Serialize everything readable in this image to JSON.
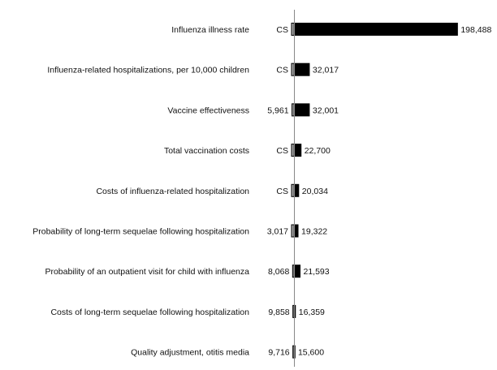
{
  "chart_data": {
    "type": "tornado",
    "title": "",
    "xlabel": "",
    "ylabel": "",
    "base_value": 15000,
    "x_range": [
      12000,
      200000
    ],
    "colors": {
      "low": "#a6a6a6",
      "high": "#000000",
      "axis": "#888888"
    },
    "parameters": [
      {
        "label": "Influenza illness rate",
        "low_text": "CS",
        "low_value": 12000,
        "high_value": 198488,
        "high_text": "198,488"
      },
      {
        "label": "Influenza-related hospitalizations, per 10,000 children",
        "low_text": "CS",
        "low_value": 12000,
        "high_value": 32017,
        "high_text": "32,017"
      },
      {
        "label": "Vaccine effectiveness",
        "low_text": "5,961",
        "low_value": 12500,
        "high_value": 32001,
        "high_text": "32,001"
      },
      {
        "label": "Total vaccination costs",
        "low_text": "CS",
        "low_value": 12000,
        "high_value": 22700,
        "high_text": "22,700"
      },
      {
        "label": "Costs of influenza-related hospitalization",
        "low_text": "CS",
        "low_value": 12000,
        "high_value": 20034,
        "high_text": "20,034"
      },
      {
        "label": "Probability of long-term sequelae following hospitalization",
        "low_text": "3,017",
        "low_value": 12000,
        "high_value": 19322,
        "high_text": "19,322"
      },
      {
        "label": "Probability of an outpatient visit for child with influenza",
        "low_text": "8,068",
        "low_value": 13200,
        "high_value": 21593,
        "high_text": "21,593"
      },
      {
        "label": "Costs of long-term sequelae following hospitalization",
        "low_text": "9,858",
        "low_value": 13500,
        "high_value": 16359,
        "high_text": "16,359"
      },
      {
        "label": "Quality adjustment, otitis media",
        "low_text": "9,716",
        "low_value": 13500,
        "high_value": 15600,
        "high_text": "15,600"
      }
    ]
  }
}
